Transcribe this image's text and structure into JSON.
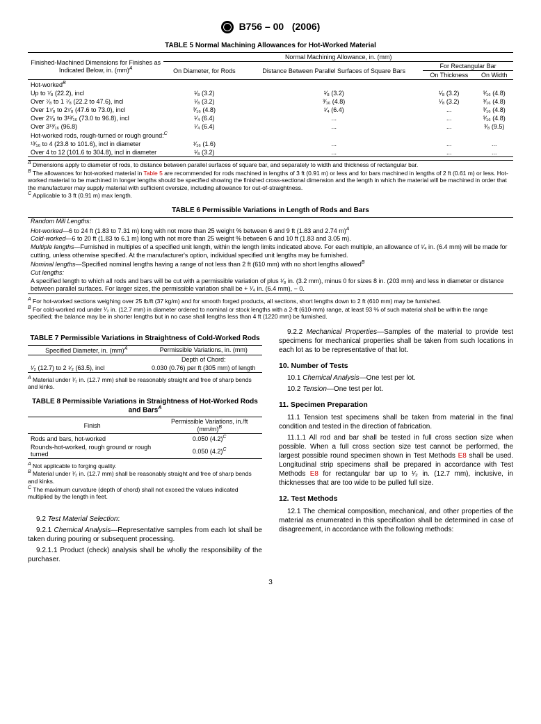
{
  "header": {
    "designation": "B756 – 00",
    "year": "(2006)"
  },
  "table5": {
    "title": "TABLE 5  Normal Machining Allowances for Hot-Worked Material",
    "head_left": "Finished-Machined Dimensions for Finishes as Indicated Below, in. (mm)",
    "head_left_sup": "A",
    "head_span": "Normal Machining Allowance, in. (mm)",
    "col_diam": "On Diameter, for Rods",
    "col_dist": "Distance Between Parallel Surfaces of Square Bars",
    "col_rect": "For Rectangular Bar",
    "col_thick": "On Thickness",
    "col_width": "On Width",
    "group1": "Hot-worked",
    "group1_sup": "B",
    "rows": [
      {
        "label": "Up to ⁷⁄₈ (22.2), incl",
        "c1": "¹⁄₈ (3.2)",
        "c2": "¹⁄₈ (3.2)",
        "c3": "¹⁄₈ (3.2)",
        "c4": "³⁄₁₆ (4.8)"
      },
      {
        "label": "Over ⁷⁄₈ to 1 ⁷⁄₈ (22.2 to 47.6), incl",
        "c1": "¹⁄₈ (3.2)",
        "c2": "³⁄₁₆ (4.8)",
        "c3": "¹⁄₈ (3.2)",
        "c4": "³⁄₁₆ (4.8)"
      },
      {
        "label": "Over 1⁷⁄₈ to 2⁷⁄₈ (47.6 to 73.0), incl",
        "c1": "³⁄₁₆ (4.8)",
        "c2": "¹⁄₄ (6.4)",
        "c3": "...",
        "c4": "³⁄₁₆ (4.8)"
      },
      {
        "label": "Over 2⁷⁄₈ to 3¹³⁄₁₆ (73.0 to 96.8), incl",
        "c1": "¹⁄₄ (6.4)",
        "c2": "...",
        "c3": "...",
        "c4": "³⁄₁₆ (4.8)"
      },
      {
        "label": "Over 3¹³⁄₁₆ (96.8)",
        "c1": "¹⁄₄ (6.4)",
        "c2": "...",
        "c3": "...",
        "c4": "³⁄₈ (9.5)"
      }
    ],
    "group2": "Hot-worked rods, rough-turned or rough ground:",
    "group2_sup": "C",
    "rows2": [
      {
        "label": "¹³⁄₁₆ to 4 (23.8 to 101.6), incl in diameter",
        "c1": "¹⁄₁₆ (1.6)",
        "c2": "...",
        "c3": "...",
        "c4": "..."
      },
      {
        "label": "Over 4 to 12 (101.6 to 304.8), incl in diameter",
        "c1": "¹⁄₈ (3.2)",
        "c2": "...",
        "c3": "...",
        "c4": "..."
      }
    ],
    "fn_a": " Dimensions apply to diameter of rods, to distance between parallel surfaces of square bar, and separately to width and thickness of rectangular bar.",
    "fn_b1": " The allowances for hot-worked material in ",
    "fn_b_link": "Table 5",
    "fn_b2": " are recommended for rods machined in lengths of 3 ft (0.91 m) or less and for bars machined in lengths of 2 ft (0.61 m) or less. Hot-worked material to be machined in longer lengths should be specified showing the finished cross-sectional dimension and the length in which the material will be machined in order that the manufacturer may supply material with sufficient oversize, including allowance for out-of-straightness.",
    "fn_c": " Applicable to 3 ft (0.91 m) max length."
  },
  "table6": {
    "title": "TABLE 6  Permissible Variations in Length of Rods and Bars",
    "rml": "Random Mill Lengths:",
    "hw_label": "Hot-worked",
    "hw_text": "—6 to 24 ft (1.83 to 7.31 m) long with not more than 25 weight % between 6 and 9 ft (1.83 and 2.74 m)",
    "hw_sup": "A",
    "cw_label": "Cold-worked",
    "cw_text": "—6 to 20 ft (1.83 to 6.1 m) long with not more than 25 weight % between 6 and 10 ft (1.83 and 3.05 m).",
    "ml_label": "Multiple lengths",
    "ml_text": "—Furnished in multiples of a specified unit length, within the length limits indicated above. For each multiple, an allowance of ¹⁄₄ in. (6.4 mm) will be made for cutting, unless otherwise specified. At the manufacturer's option, individual specified unit lengths may be furnished.",
    "nl_label": "Nominal lengths",
    "nl_text": "—Specified nominal lengths having a range of not less than 2 ft (610 mm) with no short lengths allowed",
    "nl_sup": "B",
    "cl": "Cut lengths:",
    "cl_text": "A specified length to which all rods and bars will be cut with a permissible variation of plus ¹⁄₈ in. (3.2 mm), minus 0 for sizes 8 in. (203 mm) and less in diameter or distance between parallel surfaces. For larger sizes, the permissible variation shall be + ¹⁄₄ in. (6.4 mm), − 0.",
    "fn_a": " For hot-worked sections weighing over 25 lb/ft (37 kg/m) and for smooth forged products, all sections, short lengths down to 2 ft (610 mm) may be furnished.",
    "fn_b": " For cold-worked rod under ¹⁄₂ in. (12.7 mm) in diameter ordered to nominal or stock lengths with a 2-ft (610-mm) range, at least 93 % of such material shall be within the range specified; the balance may be in shorter lengths but in no case shall lengths less than 4 ft (1220 mm) be furnished."
  },
  "table7": {
    "title": "TABLE 7  Permissible Variations in Straightness of Cold-Worked Rods",
    "h1": "Specified Diameter, in. (mm)",
    "h1_sup": "A",
    "h2": "Permissible Variations, in. (mm)",
    "sub": "Depth of Chord:",
    "row_label": "¹⁄₂ (12.7) to 2 ¹⁄₂ (63.5), incl",
    "row_val": "0.030 (0.76) per ft (305 mm) of length",
    "fn_a": " Material under ¹⁄₂ in. (12.7 mm) shall be reasonably straight and free of sharp bends and kinks."
  },
  "table8": {
    "title": "TABLE 8  Permissible Variations in Straightness of Hot-Worked Rods and Bars",
    "title_sup": "A",
    "h1": "Finish",
    "h2": "Permissible Variations, in./ft (mm/m)",
    "h2_sup": "B",
    "rows": [
      {
        "label": "Rods and bars, hot-worked",
        "val": "0.050 (4.2)",
        "sup": "C"
      },
      {
        "label": "Rounds-hot-worked, rough ground or rough turned",
        "val": "0.050 (4.2)",
        "sup": "C"
      }
    ],
    "fn_a": " Not applicable to forging quality.",
    "fn_b": " Material under ¹⁄₂ in. (12.7 mm) shall be reasonably straight and free of sharp bends and kinks.",
    "fn_c": " The maximum curvature (depth of chord) shall not exceed the values indicated multiplied by the length in feet."
  },
  "leftcol": {
    "s92": "9.2 ",
    "s92_t": "Test Material Selection",
    "s921": "9.2.1 ",
    "s921_t": "Chemical Analysis",
    "s921_body": "—Representative samples from each lot shall be taken during pouring or subsequent processing.",
    "s9211": "9.2.1.1  Product (check) analysis shall be wholly the responsibility of the purchaser."
  },
  "rightcol": {
    "s922": "9.2.2 ",
    "s922_t": "Mechanical Properties",
    "s922_body": "—Samples of the material to provide test specimens for mechanical properties shall be taken from such locations in each lot as to be representative of that lot.",
    "h10": "10.  Number of Tests",
    "s101": "10.1 ",
    "s101_t": "Chemical Analysis",
    "s101_body": "—One test per lot.",
    "s102": "10.2 ",
    "s102_t": "Tension",
    "s102_body": "—One test per lot.",
    "h11": "11.  Specimen Preparation",
    "s111": "11.1  Tension test specimens shall be taken from material in the final condition and tested in the direction of fabrication.",
    "s1111a": "11.1.1  All rod and bar shall be tested in full cross section size when possible. When a full cross section size test cannot be performed, the largest possible round specimen shown in Test Methods ",
    "e8a": "E8",
    "s1111b": " shall be used. Longitudinal strip specimens shall be prepared in accordance with Test Methods ",
    "e8b": "E8",
    "s1111c": " for rectangular bar up to ¹⁄₂ in. (12.7 mm), inclusive, in thicknesses that are too wide to be pulled full size.",
    "h12": "12.  Test Methods",
    "s121": "12.1  The chemical composition, mechanical, and other properties of the material as enumerated in this specification shall be determined in case of disagreement, in accordance with the following methods:"
  },
  "page": "3"
}
